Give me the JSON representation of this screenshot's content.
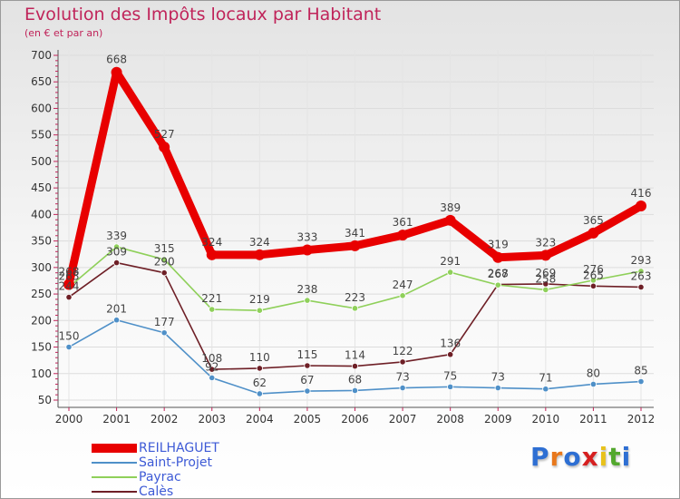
{
  "title": "Evolution des Impôts locaux par Habitant",
  "subtitle": "(en € et par an)",
  "logo": {
    "text": "Proxiti",
    "letter_colors": [
      "#2e6fd3",
      "#e8781c",
      "#2e6fd3",
      "#d62020",
      "#e8c21c",
      "#53a82e",
      "#2e6fd3"
    ]
  },
  "chart_data": {
    "type": "line",
    "x": [
      "2000",
      "2001",
      "2002",
      "2003",
      "2004",
      "2005",
      "2006",
      "2007",
      "2008",
      "2009",
      "2010",
      "2011",
      "2012"
    ],
    "yticks": [
      "50",
      "100",
      "150",
      "200",
      "250",
      "300",
      "350",
      "400",
      "450",
      "500",
      "550",
      "600",
      "650",
      "700"
    ],
    "ylim": [
      50,
      700
    ],
    "series": [
      {
        "name": "REILHAGUET",
        "color": "#e80000",
        "values": [
          268,
          668,
          527,
          324,
          324,
          333,
          341,
          361,
          389,
          319,
          323,
          365,
          416
        ],
        "labels": [
          "268",
          "668",
          "527",
          "324",
          "324",
          "333",
          "341",
          "361",
          "389",
          "319",
          "323",
          "365",
          "416"
        ]
      },
      {
        "name": "Saint-Projet",
        "color": "#4f90c8",
        "values": [
          150,
          201,
          177,
          92,
          62,
          67,
          68,
          73,
          75,
          73,
          71,
          80,
          85
        ],
        "labels": [
          "150",
          "201",
          "177",
          "92",
          "62",
          "67",
          "68",
          "73",
          "75",
          "73",
          "71",
          "80",
          "85"
        ]
      },
      {
        "name": "Payrac",
        "color": "#8fd05a",
        "values": [
          263,
          339,
          315,
          221,
          219,
          238,
          223,
          247,
          291,
          267,
          258,
          276,
          293
        ],
        "labels": [
          "263",
          "339",
          "315",
          "221",
          "219",
          "238",
          "223",
          "247",
          "291",
          "267",
          "258",
          "276",
          "293"
        ]
      },
      {
        "name": "Calès",
        "color": "#6e1f26",
        "values": [
          244,
          309,
          290,
          108,
          110,
          115,
          114,
          122,
          136,
          268,
          269,
          265,
          263
        ],
        "labels": [
          "244",
          "309",
          "290",
          "108",
          "110",
          "115",
          "114",
          "122",
          "136",
          "268",
          "269",
          "265",
          "263"
        ]
      }
    ]
  }
}
